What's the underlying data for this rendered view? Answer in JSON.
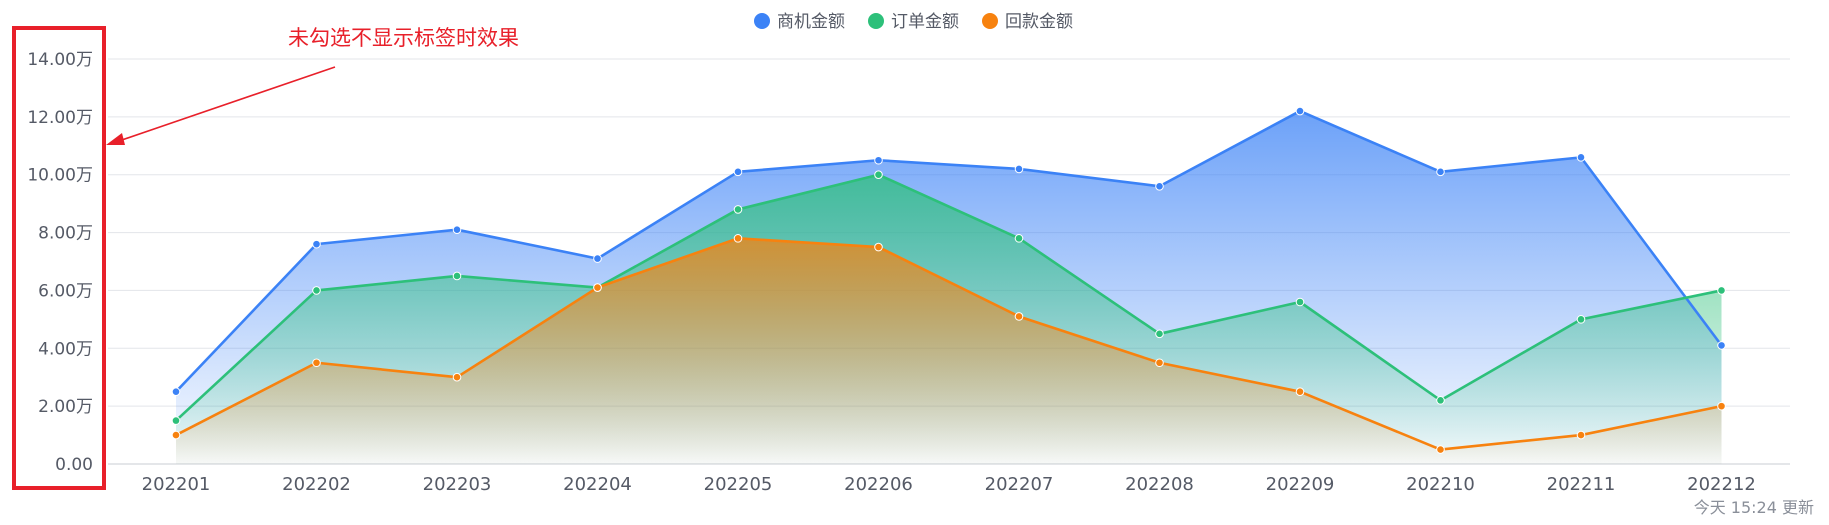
{
  "chart_data": {
    "type": "area",
    "categories": [
      "202201",
      "202202",
      "202203",
      "202204",
      "202205",
      "202206",
      "202207",
      "202208",
      "202209",
      "202210",
      "202211",
      "202212"
    ],
    "series": [
      {
        "name": "商机金额",
        "color": "#3b82f6",
        "values": [
          2.5,
          7.6,
          8.1,
          7.1,
          10.1,
          10.5,
          10.2,
          9.6,
          12.2,
          10.1,
          10.6,
          4.1
        ]
      },
      {
        "name": "订单金额",
        "color": "#2dc07a",
        "values": [
          1.5,
          6.0,
          6.5,
          6.1,
          8.8,
          10.0,
          7.8,
          4.5,
          5.6,
          2.2,
          5.0,
          6.0
        ]
      },
      {
        "name": "回款金额",
        "color": "#f7820f",
        "values": [
          1.0,
          3.5,
          3.0,
          6.1,
          7.8,
          7.5,
          5.1,
          3.5,
          2.5,
          0.5,
          1.0,
          2.0
        ]
      }
    ],
    "y_ticks": [
      "0.00",
      "2.00万",
      "4.00万",
      "6.00万",
      "8.00万",
      "10.00万",
      "12.00万",
      "14.00万"
    ],
    "ylim": [
      0,
      14
    ],
    "y_unit": "万",
    "legend_position": "top-center",
    "grid": true,
    "title": "",
    "xlabel": "",
    "ylabel": ""
  },
  "annotation": {
    "text": "未勾选不显示标签时效果",
    "color": "#e8202a"
  },
  "footer": {
    "updated_text": "今天 15:24 更新"
  }
}
